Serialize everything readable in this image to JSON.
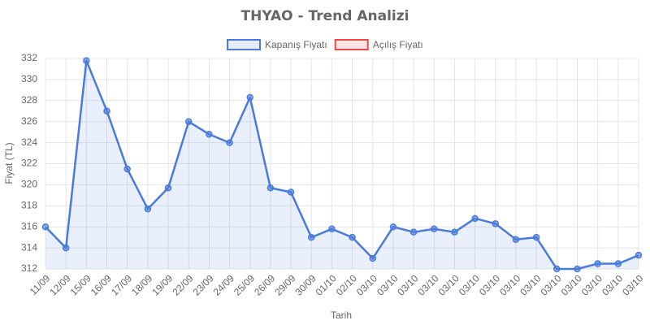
{
  "chart_data": {
    "type": "line",
    "title": "THYAO - Trend Analizi",
    "x_label": "Tarih",
    "y_label": "Fiyat (TL)",
    "categories": [
      "11/09",
      "12/09",
      "15/09",
      "16/09",
      "17/09",
      "18/09",
      "19/09",
      "22/09",
      "23/09",
      "24/09",
      "25/09",
      "26/09",
      "29/09",
      "30/09",
      "01/10",
      "02/10",
      "03/10",
      "03/10",
      "03/10",
      "03/10",
      "03/10",
      "03/10",
      "03/10",
      "03/10",
      "03/10",
      "03/10",
      "03/10",
      "03/10",
      "03/10",
      "03/10"
    ],
    "series": [
      {
        "name": "Kapanış Fiyatı",
        "color": "#4a7bdc",
        "values": [
          316,
          314,
          331.8,
          327,
          321.5,
          317.7,
          319.7,
          326,
          324.8,
          324,
          328.3,
          319.7,
          319.3,
          315,
          315.8,
          315,
          313,
          316,
          315.5,
          315.8,
          315.5,
          316.8,
          316.3,
          314.8,
          315,
          312,
          312,
          312.5,
          312.5,
          313.3
        ]
      },
      {
        "name": "Açılış Fiyatı",
        "color": "#e84a4a",
        "values": [
          null,
          null,
          null,
          null,
          null,
          null,
          null,
          null,
          null,
          null,
          null,
          null,
          null,
          null,
          null,
          null,
          null,
          null,
          null,
          null,
          null,
          null,
          null,
          null,
          null,
          null,
          null,
          null,
          null,
          null
        ]
      }
    ],
    "ylim": [
      312,
      332
    ],
    "yticks": [
      312,
      314,
      316,
      318,
      320,
      322,
      324,
      326,
      328,
      330,
      332
    ],
    "grid": true
  }
}
